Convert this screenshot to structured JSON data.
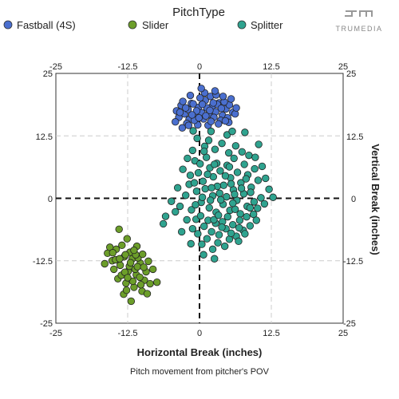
{
  "legend": {
    "title": "PitchType",
    "items": [
      {
        "label": "Fastball (4S)",
        "color": "#4a6fcf"
      },
      {
        "label": "Slider",
        "color": "#6c9e2a"
      },
      {
        "label": "Splitter",
        "color": "#2fa38f"
      }
    ]
  },
  "brand": {
    "name": "TRUMEDIA",
    "icon": "trumedia-logo-icon"
  },
  "caption": "Pitch movement from pitcher's POV",
  "chart_data": {
    "type": "scatter",
    "xlabel": "Horizontal Break (inches)",
    "ylabel": "Vertical Break (inches)",
    "xlim": [
      -25,
      25
    ],
    "ylim": [
      -25,
      25
    ],
    "x_ticks": [
      "-25",
      "-12.5",
      "0",
      "12.5",
      "25"
    ],
    "y_ticks": [
      "25",
      "12.5",
      "0",
      "-12.5",
      "-25"
    ],
    "grid": true,
    "zero_lines": "dashed",
    "legend_position": "top",
    "series": [
      {
        "name": "Fastball (4S)",
        "color": "#4a6fcf",
        "points": [
          [
            -4,
            17.5
          ],
          [
            -3.2,
            18.6
          ],
          [
            -2.6,
            16.9
          ],
          [
            -2,
            17.8
          ],
          [
            -1.4,
            19
          ],
          [
            -0.8,
            16.4
          ],
          [
            -0.2,
            18.2
          ],
          [
            0.4,
            17.1
          ],
          [
            1,
            19.6
          ],
          [
            1.6,
            16.8
          ],
          [
            2.2,
            18.4
          ],
          [
            2.8,
            17.3
          ],
          [
            3.4,
            19.1
          ],
          [
            4,
            16.6
          ],
          [
            4.6,
            17.9
          ],
          [
            5.2,
            18.7
          ],
          [
            5.8,
            17.2
          ],
          [
            -3.6,
            16.2
          ],
          [
            -2.9,
            19.4
          ],
          [
            -1.8,
            15.8
          ],
          [
            -1.1,
            18.9
          ],
          [
            -0.5,
            17.5
          ],
          [
            0.1,
            20.1
          ],
          [
            0.7,
            15.9
          ],
          [
            1.3,
            18.1
          ],
          [
            1.9,
            20.4
          ],
          [
            2.5,
            16.2
          ],
          [
            3.1,
            18.8
          ],
          [
            3.7,
            15.6
          ],
          [
            4.3,
            19.3
          ],
          [
            4.9,
            16.1
          ],
          [
            5.5,
            19.9
          ],
          [
            -4.2,
            15.3
          ],
          [
            -2.2,
            15
          ],
          [
            -0.3,
            14.7
          ],
          [
            1.5,
            14.6
          ],
          [
            3.3,
            14.9
          ],
          [
            5.1,
            15.2
          ],
          [
            6.2,
            16.9
          ],
          [
            -1.6,
            20.6
          ],
          [
            0.9,
            21.1
          ],
          [
            2.9,
            20.7
          ],
          [
            0.3,
            22
          ],
          [
            -3,
            14.1
          ],
          [
            2,
            15.4
          ],
          [
            -0.9,
            15.6
          ],
          [
            1.1,
            16.5
          ],
          [
            2.4,
            19.1
          ],
          [
            -2.4,
            18.1
          ],
          [
            3.8,
            18
          ],
          [
            4.5,
            15.5
          ],
          [
            0.5,
            18.8
          ],
          [
            -1.3,
            16.7
          ],
          [
            1.8,
            17.6
          ],
          [
            -0.1,
            16.1
          ],
          [
            6.4,
            18.1
          ],
          [
            -3.4,
            17.2
          ],
          [
            2.7,
            21.5
          ],
          [
            -1.9,
            14.6
          ],
          [
            4.1,
            20.4
          ]
        ]
      },
      {
        "name": "Slider",
        "color": "#6c9e2a",
        "points": [
          [
            -16,
            -11
          ],
          [
            -15.2,
            -12.5
          ],
          [
            -14.5,
            -10.2
          ],
          [
            -13.8,
            -13.4
          ],
          [
            -13.1,
            -11.7
          ],
          [
            -12.4,
            -14.6
          ],
          [
            -11.7,
            -12.1
          ],
          [
            -11,
            -15.3
          ],
          [
            -10.3,
            -13
          ],
          [
            -9.6,
            -16.4
          ],
          [
            -14.9,
            -14.2
          ],
          [
            -14.2,
            -16.1
          ],
          [
            -13.5,
            -9.4
          ],
          [
            -12.8,
            -17
          ],
          [
            -12.1,
            -10.8
          ],
          [
            -11.4,
            -17.8
          ],
          [
            -10.7,
            -11.9
          ],
          [
            -10,
            -18.6
          ],
          [
            -9.3,
            -14.7
          ],
          [
            -8.6,
            -17.1
          ],
          [
            -15.6,
            -9.8
          ],
          [
            -13.2,
            -19.2
          ],
          [
            -12.6,
            -8.1
          ],
          [
            -11.9,
            -20.6
          ],
          [
            -10.4,
            -15.8
          ],
          [
            -8.9,
            -12.6
          ],
          [
            -8.1,
            -14.2
          ],
          [
            -7.4,
            -16.8
          ],
          [
            -16.5,
            -13.1
          ],
          [
            -14,
            -6.2
          ],
          [
            -13.6,
            -15.4
          ],
          [
            -12.2,
            -13.6
          ],
          [
            -11.2,
            -14.2
          ],
          [
            -10.9,
            -9.6
          ],
          [
            -9.9,
            -11.2
          ],
          [
            -12.9,
            -11.3
          ],
          [
            -14.6,
            -12.3
          ],
          [
            -11.6,
            -16.6
          ],
          [
            -10.2,
            -17.3
          ],
          [
            -9.1,
            -19.1
          ],
          [
            -13,
            -14.8
          ],
          [
            -12,
            -12.9
          ],
          [
            -11.1,
            -11.3
          ],
          [
            -15.1,
            -10.9
          ],
          [
            -10.8,
            -13.7
          ],
          [
            -12.5,
            -15.9
          ],
          [
            -13.9,
            -12.1
          ],
          [
            -9.7,
            -13.8
          ],
          [
            -11.4,
            -10.4
          ],
          [
            -12.7,
            -18.4
          ]
        ]
      },
      {
        "name": "Splitter",
        "color": "#2fa38f",
        "points": [
          [
            -1.2,
            9.6
          ],
          [
            -0.8,
            7.5
          ],
          [
            -0.2,
            5.1
          ],
          [
            0.6,
            3.4
          ],
          [
            1.2,
            8.2
          ],
          [
            1.8,
            6.1
          ],
          [
            2.4,
            4.3
          ],
          [
            3,
            7
          ],
          [
            3.6,
            5.5
          ],
          [
            4.2,
            2.6
          ],
          [
            4.8,
            6.6
          ],
          [
            5.4,
            4.1
          ],
          [
            6,
            8
          ],
          [
            6.6,
            5.2
          ],
          [
            7.2,
            3.1
          ],
          [
            7.8,
            6.8
          ],
          [
            8.4,
            4.7
          ],
          [
            9,
            2.2
          ],
          [
            9.6,
            5.9
          ],
          [
            10.2,
            3.6
          ],
          [
            -0.5,
            1.4
          ],
          [
            0.3,
            -0.8
          ],
          [
            1,
            1.9
          ],
          [
            1.7,
            -1.9
          ],
          [
            2.3,
            0.5
          ],
          [
            2.9,
            -2.8
          ],
          [
            3.5,
            1
          ],
          [
            4.1,
            -1.2
          ],
          [
            4.7,
            0.3
          ],
          [
            5.3,
            -2.4
          ],
          [
            5.9,
            1.7
          ],
          [
            6.5,
            -0.4
          ],
          [
            7.1,
            -3.1
          ],
          [
            7.7,
            0.9
          ],
          [
            8.3,
            -1.6
          ],
          [
            8.9,
            1.2
          ],
          [
            9.5,
            -0.7
          ],
          [
            10.1,
            -2
          ],
          [
            10.7,
            0.1
          ],
          [
            11.3,
            -1.1
          ],
          [
            -1.8,
            2.8
          ],
          [
            -2.4,
            0.6
          ],
          [
            -1.4,
            -2.3
          ],
          [
            -0.6,
            -4.2
          ],
          [
            0.2,
            -3.5
          ],
          [
            0.8,
            -5.6
          ],
          [
            1.5,
            -4.4
          ],
          [
            2.1,
            -6.7
          ],
          [
            2.8,
            -5
          ],
          [
            3.4,
            -7.3
          ],
          [
            4,
            -4.7
          ],
          [
            4.6,
            -6.1
          ],
          [
            5.2,
            -8.2
          ],
          [
            5.8,
            -5.3
          ],
          [
            6.4,
            -7.6
          ],
          [
            7,
            -4.4
          ],
          [
            7.6,
            -6.4
          ],
          [
            8.2,
            -3.7
          ],
          [
            8.8,
            -5.5
          ],
          [
            9.4,
            -3.2
          ],
          [
            -2.9,
            5.8
          ],
          [
            -1.6,
            4.6
          ],
          [
            -0.9,
            3.1
          ],
          [
            0.1,
            6.9
          ],
          [
            0.9,
            10.4
          ],
          [
            1.6,
            11.6
          ],
          [
            2.7,
            9.8
          ],
          [
            3.9,
            11
          ],
          [
            5.1,
            9.1
          ],
          [
            6.3,
            10.5
          ],
          [
            7.4,
            9.3
          ],
          [
            8.6,
            8.6
          ],
          [
            9.7,
            8.2
          ],
          [
            10.9,
            6.4
          ],
          [
            11.5,
            4
          ],
          [
            12.1,
            1.8
          ],
          [
            12.8,
            0.2
          ],
          [
            -3.4,
            -1.6
          ],
          [
            -4.2,
            -2.7
          ],
          [
            -3.8,
            2.1
          ],
          [
            -1.2,
            -6.1
          ],
          [
            -0.3,
            -7.1
          ],
          [
            0.4,
            -9.2
          ],
          [
            1.3,
            -8.1
          ],
          [
            2.3,
            -10.2
          ],
          [
            3.2,
            -8.9
          ],
          [
            4.4,
            -9.6
          ],
          [
            5.5,
            -7
          ],
          [
            6.8,
            -8.6
          ],
          [
            7.9,
            -7.1
          ],
          [
            -5.9,
            -3.6
          ],
          [
            -6.3,
            -5.1
          ],
          [
            -3.1,
            -6.7
          ],
          [
            -2.2,
            -4.3
          ],
          [
            -1.5,
            -9.1
          ],
          [
            0.7,
            -11.3
          ],
          [
            2.6,
            -12.1
          ],
          [
            -4.9,
            -0.6
          ],
          [
            4.8,
            12.7
          ],
          [
            2,
            13.4
          ],
          [
            -0.4,
            12
          ],
          [
            5.7,
            13.4
          ],
          [
            7.9,
            13.2
          ],
          [
            10.3,
            10.8
          ],
          [
            -1.1,
            13.5
          ],
          [
            3.1,
            2.4
          ],
          [
            2.1,
            2.1
          ],
          [
            4.5,
            4.5
          ],
          [
            5.5,
            2.9
          ],
          [
            6.1,
            0.8
          ],
          [
            3.7,
            -0.3
          ],
          [
            7.3,
            2
          ],
          [
            8.1,
            3.9
          ],
          [
            1.4,
            4.8
          ],
          [
            0.5,
            0.2
          ],
          [
            2.5,
            -4.3
          ],
          [
            6.2,
            -2.2
          ],
          [
            8.8,
            -1.9
          ],
          [
            3.3,
            -3.4
          ],
          [
            9.9,
            -4.4
          ],
          [
            -0.7,
            -1.3
          ],
          [
            1.9,
            -0.4
          ],
          [
            5.8,
            -1
          ],
          [
            4.9,
            -3.7
          ],
          [
            6.9,
            -5.9
          ],
          [
            3.9,
            -5.8
          ],
          [
            2.6,
            6.8
          ],
          [
            5.2,
            6.3
          ],
          [
            0.8,
            9.4
          ],
          [
            -2.1,
            8
          ]
        ]
      }
    ]
  }
}
